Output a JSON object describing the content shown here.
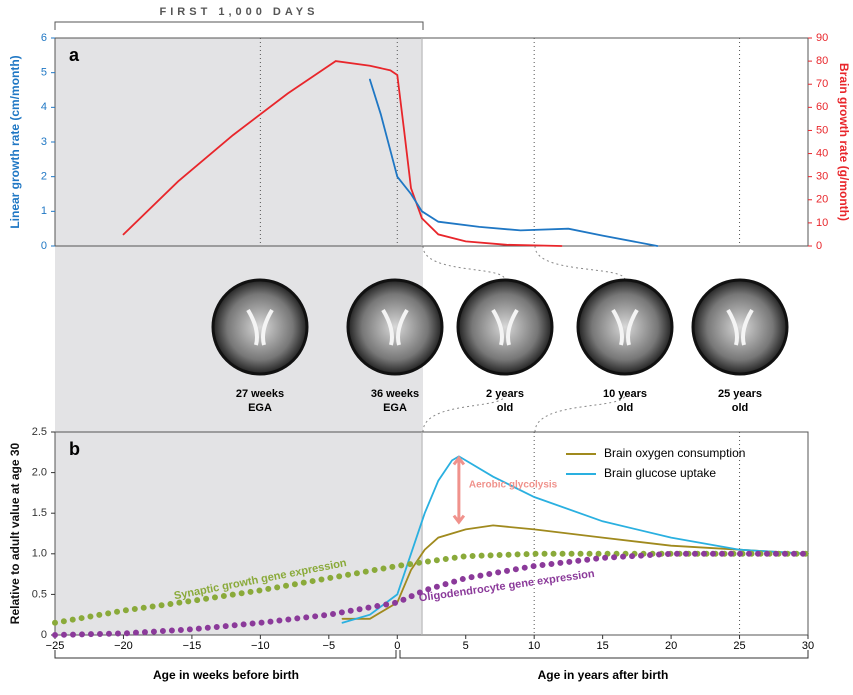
{
  "header": {
    "title": "FIRST 1,000 DAYS"
  },
  "chart_data": [
    {
      "type": "line",
      "panel_label": "a",
      "xlim": [
        -25,
        30
      ],
      "ylim": [
        0,
        6
      ],
      "yticks": [
        0,
        1,
        2,
        3,
        4,
        5,
        6
      ],
      "y2lim": [
        0,
        90
      ],
      "y2ticks": [
        0,
        10,
        20,
        30,
        40,
        50,
        60,
        70,
        80,
        90
      ],
      "ylabel": "Linear growth rate (cm/month)",
      "y2label": "Brain growth rate (g/month)",
      "ycolor": "#1f77c4",
      "y2color": "#e8262b",
      "shade_xlim": [
        -25,
        1.8
      ],
      "vlines": [
        -10,
        0,
        10,
        25
      ],
      "series": [
        {
          "color": "#e8262b",
          "axis": "y2",
          "x": [
            -20,
            -16,
            -12,
            -8,
            -6,
            -4.5,
            -2,
            -0.5,
            0,
            0.5,
            1,
            1.8,
            3,
            5,
            8,
            12
          ],
          "values": [
            5,
            28,
            48,
            66,
            74,
            80,
            78,
            76,
            74,
            50,
            25,
            12,
            5,
            2,
            0.5,
            0
          ]
        },
        {
          "color": "#1f77c4",
          "axis": "y",
          "x": [
            -2,
            -1.2,
            0,
            1,
            1.8,
            3,
            6,
            9,
            12.5,
            15,
            19
          ],
          "values": [
            4.8,
            3.8,
            2,
            1.5,
            1,
            0.7,
            0.55,
            0.45,
            0.5,
            0.3,
            0
          ]
        }
      ]
    },
    {
      "type": "line",
      "panel_label": "b",
      "xlim": [
        -25,
        30
      ],
      "ylim": [
        0,
        2.5
      ],
      "xticks": [
        {
          "value": -25,
          "label": "−25"
        },
        {
          "value": -20,
          "label": "−20"
        },
        {
          "value": -15,
          "label": "−15"
        },
        {
          "value": -10,
          "label": "−10"
        },
        {
          "value": -5,
          "label": "−5"
        },
        0,
        5,
        10,
        15,
        20,
        25,
        30
      ],
      "yticks": [
        0,
        0.5,
        {
          "value": 1,
          "label": "1.0"
        },
        1.5,
        {
          "value": 2,
          "label": "2.0"
        },
        2.5
      ],
      "ylabel": "Relative to adult value at age 30",
      "x_labels": [
        "Age in weeks before birth",
        "Age in years after birth"
      ],
      "shade_xlim": [
        -25,
        1.8
      ],
      "vlines": [
        10,
        25
      ],
      "legend": "upper right",
      "annotation": "Aerobic glycolysis",
      "series": [
        {
          "name": "Brain oxygen consumption",
          "color": "#a08a1e",
          "style": "solid",
          "x": [
            -4,
            -2,
            0,
            1,
            2,
            3,
            5,
            7,
            10,
            15,
            20,
            25,
            30
          ],
          "values": [
            0.2,
            0.2,
            0.4,
            0.8,
            1.05,
            1.2,
            1.3,
            1.35,
            1.3,
            1.2,
            1.1,
            1.05,
            1
          ]
        },
        {
          "name": "Brain glucose uptake",
          "color": "#2ab0e0",
          "style": "solid",
          "x": [
            -4,
            -2,
            0,
            1,
            2,
            3,
            4,
            4.5,
            5,
            7,
            10,
            15,
            20,
            25,
            30
          ],
          "values": [
            0.15,
            0.25,
            0.5,
            1,
            1.5,
            1.9,
            2.15,
            2.2,
            2.15,
            1.95,
            1.7,
            1.4,
            1.2,
            1.05,
            1
          ]
        },
        {
          "name": "Synaptic growth gene expression",
          "color": "#8aaa3a",
          "style": "dotted",
          "x": [
            -25,
            -20,
            -15,
            -10,
            -5,
            0,
            2,
            5,
            10,
            20,
            30
          ],
          "values": [
            0.15,
            0.3,
            0.42,
            0.55,
            0.7,
            0.85,
            0.9,
            0.97,
            1,
            1,
            1
          ]
        },
        {
          "name": "Oligodendrocyte gene expression",
          "color": "#8b3a9a",
          "style": "dotted",
          "x": [
            -25,
            -20,
            -15,
            -10,
            -5,
            0,
            2,
            5,
            10,
            15,
            20,
            30
          ],
          "values": [
            0,
            0.02,
            0.07,
            0.15,
            0.25,
            0.4,
            0.55,
            0.7,
            0.85,
            0.95,
            1,
            1
          ]
        }
      ]
    }
  ],
  "brain_scans": [
    [
      "27 weeks",
      "EGA"
    ],
    [
      "36 weeks",
      "EGA"
    ],
    [
      "2 years",
      "old"
    ],
    [
      "10 years",
      "old"
    ],
    [
      "25 years",
      "old"
    ]
  ]
}
